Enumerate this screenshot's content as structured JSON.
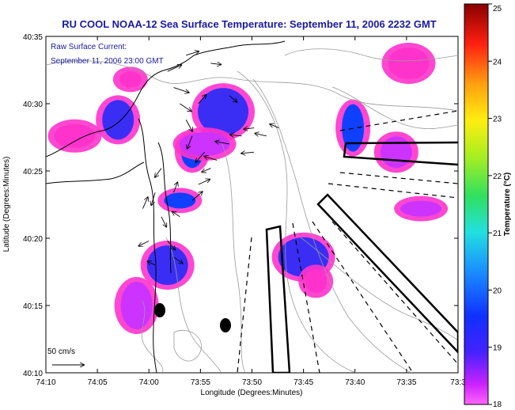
{
  "chart_data": {
    "type": "heatmap",
    "title": "RU COOL  NOAA-12  Sea Surface Temperature:  September 11, 2006 2232 GMT",
    "annotation_line1": "Raw Surface Current:",
    "annotation_line2": "September 11, 2006 23:00 GMT",
    "xlabel": "Longitude (Degrees:Minutes)",
    "ylabel": "Latitude (Degrees:Minutes)",
    "x_ticks": [
      "74:10",
      "74:05",
      "74:00",
      "73:55",
      "73:50",
      "73:45",
      "73:40",
      "73:35",
      "73:3"
    ],
    "y_ticks": [
      "40:35",
      "40:30",
      "40:25",
      "40:20",
      "40:15",
      "40:10"
    ],
    "x_range_min": [
      -74.1667,
      -73.5
    ],
    "y_range_min": [
      40.1667,
      40.5833
    ],
    "scale_label": "50 cm/s",
    "colorbar": {
      "label": "Temperature (°C)",
      "ticks": [
        "25",
        "24",
        "23",
        "22",
        "21",
        "20",
        "19",
        "18"
      ],
      "range": [
        18,
        25
      ]
    },
    "colors": {
      "title": "#1a1aa0",
      "annotation": "#1a1aa0",
      "warm_patch": "#ff33cc",
      "mid_patch": "#2b6ef5",
      "cool_patch": "#1010e0",
      "coast": "#000000",
      "bathymetry": "#9a9a9a"
    },
    "sst_patches": [
      {
        "lon": -74.03,
        "lat": 40.53,
        "temp_c": 18.2
      },
      {
        "lon": -74.05,
        "lat": 40.48,
        "temp_c": 18.8
      },
      {
        "lon": -74.12,
        "lat": 40.46,
        "temp_c": 18.1
      },
      {
        "lon": -73.88,
        "lat": 40.49,
        "temp_c": 18.9
      },
      {
        "lon": -73.93,
        "lat": 40.44,
        "temp_c": 19.3
      },
      {
        "lon": -73.95,
        "lat": 40.38,
        "temp_c": 19.4
      },
      {
        "lon": -73.97,
        "lat": 40.3,
        "temp_c": 18.9
      },
      {
        "lon": -73.91,
        "lat": 40.45,
        "temp_c": 18.6
      },
      {
        "lon": -73.67,
        "lat": 40.47,
        "temp_c": 19.2
      },
      {
        "lon": -73.6,
        "lat": 40.44,
        "temp_c": 18.4
      },
      {
        "lon": -73.56,
        "lat": 40.37,
        "temp_c": 18.7
      },
      {
        "lon": -73.75,
        "lat": 40.31,
        "temp_c": 18.9
      },
      {
        "lon": -73.73,
        "lat": 40.28,
        "temp_c": 18.3
      },
      {
        "lon": -74.02,
        "lat": 40.25,
        "temp_c": 18.6
      },
      {
        "lon": -73.58,
        "lat": 40.55,
        "temp_c": 18.2
      }
    ],
    "current_vectors_cm_s": [
      {
        "lon": -73.97,
        "lat": 40.54,
        "u": 22,
        "v": 10
      },
      {
        "lon": -73.96,
        "lat": 40.52,
        "u": 24,
        "v": -8
      },
      {
        "lon": -73.95,
        "lat": 40.5,
        "u": 18,
        "v": -12
      },
      {
        "lon": -73.94,
        "lat": 40.48,
        "u": 10,
        "v": -18
      },
      {
        "lon": -73.93,
        "lat": 40.46,
        "u": -8,
        "v": -20
      },
      {
        "lon": -73.91,
        "lat": 40.44,
        "u": -14,
        "v": -16
      },
      {
        "lon": -73.89,
        "lat": 40.43,
        "u": -20,
        "v": 6
      },
      {
        "lon": -73.87,
        "lat": 40.45,
        "u": -22,
        "v": 4
      },
      {
        "lon": -73.85,
        "lat": 40.46,
        "u": -18,
        "v": 2
      },
      {
        "lon": -73.83,
        "lat": 40.47,
        "u": -16,
        "v": -2
      },
      {
        "lon": -73.81,
        "lat": 40.46,
        "u": -18,
        "v": 4
      },
      {
        "lon": -73.79,
        "lat": 40.47,
        "u": -14,
        "v": 6
      },
      {
        "lon": -73.98,
        "lat": 40.42,
        "u": -10,
        "v": -14
      },
      {
        "lon": -73.99,
        "lat": 40.39,
        "u": -6,
        "v": -20
      },
      {
        "lon": -73.98,
        "lat": 40.36,
        "u": 8,
        "v": -16
      },
      {
        "lon": -73.97,
        "lat": 40.33,
        "u": 12,
        "v": -14
      },
      {
        "lon": -73.96,
        "lat": 40.31,
        "u": 14,
        "v": -10
      },
      {
        "lon": -73.99,
        "lat": 40.3,
        "u": -12,
        "v": 6
      },
      {
        "lon": -74.0,
        "lat": 40.33,
        "u": -16,
        "v": -8
      },
      {
        "lon": -74.01,
        "lat": 40.37,
        "u": 8,
        "v": 18
      },
      {
        "lon": -73.93,
        "lat": 40.38,
        "u": 16,
        "v": 14
      },
      {
        "lon": -73.92,
        "lat": 40.4,
        "u": 18,
        "v": 8
      },
      {
        "lon": -73.92,
        "lat": 40.5,
        "u": 12,
        "v": 14
      },
      {
        "lon": -73.94,
        "lat": 40.56,
        "u": 20,
        "v": 6
      },
      {
        "lon": -73.9,
        "lat": 40.55,
        "u": 16,
        "v": -2
      },
      {
        "lon": -73.87,
        "lat": 40.51,
        "u": 12,
        "v": -10
      },
      {
        "lon": -73.95,
        "lat": 40.36,
        "u": -12,
        "v": 8
      },
      {
        "lon": -73.96,
        "lat": 40.39,
        "u": 6,
        "v": 16
      },
      {
        "lon": -73.9,
        "lat": 40.42,
        "u": -14,
        "v": -6
      },
      {
        "lon": -73.83,
        "lat": 40.44,
        "u": -20,
        "v": -2
      }
    ]
  }
}
